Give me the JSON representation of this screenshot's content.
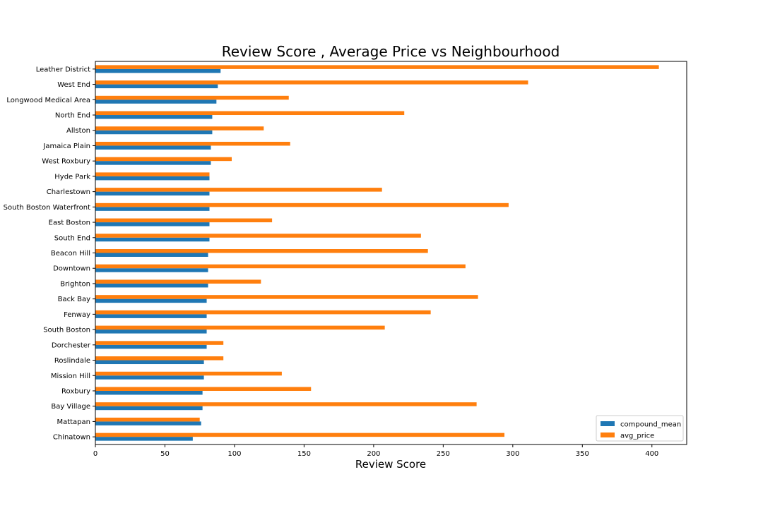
{
  "chart_data": {
    "type": "bar",
    "orientation": "horizontal",
    "title": "Review Score , Average Price vs Neighbourhood",
    "xlabel": "Review Score",
    "ylabel": "",
    "xlim": [
      0,
      425
    ],
    "x_ticks": [
      0,
      50,
      100,
      150,
      200,
      250,
      300,
      350,
      400
    ],
    "grid": false,
    "legend_position": "bottom-right",
    "categories": [
      "Leather District",
      "West End",
      "Longwood Medical Area",
      "North End",
      "Allston",
      "Jamaica Plain",
      "West Roxbury",
      "Hyde Park",
      "Charlestown",
      "South Boston Waterfront",
      "East Boston",
      "South End",
      "Beacon Hill",
      "Downtown",
      "Brighton",
      "Back Bay",
      "Fenway",
      "South Boston",
      "Dorchester",
      "Roslindale",
      "Mission Hill",
      "Roxbury",
      "Bay Village",
      "Mattapan",
      "Chinatown"
    ],
    "series": [
      {
        "name": "compound_mean",
        "color": "#1f77b4",
        "values": [
          90,
          88,
          87,
          84,
          84,
          83,
          83,
          82,
          82,
          82,
          82,
          82,
          81,
          81,
          81,
          80,
          80,
          80,
          80,
          78,
          78,
          77,
          77,
          76,
          70
        ]
      },
      {
        "name": "avg_price",
        "color": "#ff7f0e",
        "values": [
          405,
          311,
          139,
          222,
          121,
          140,
          98,
          82,
          206,
          297,
          127,
          234,
          239,
          266,
          119,
          275,
          241,
          208,
          92,
          92,
          134,
          155,
          274,
          75,
          294
        ]
      }
    ]
  }
}
